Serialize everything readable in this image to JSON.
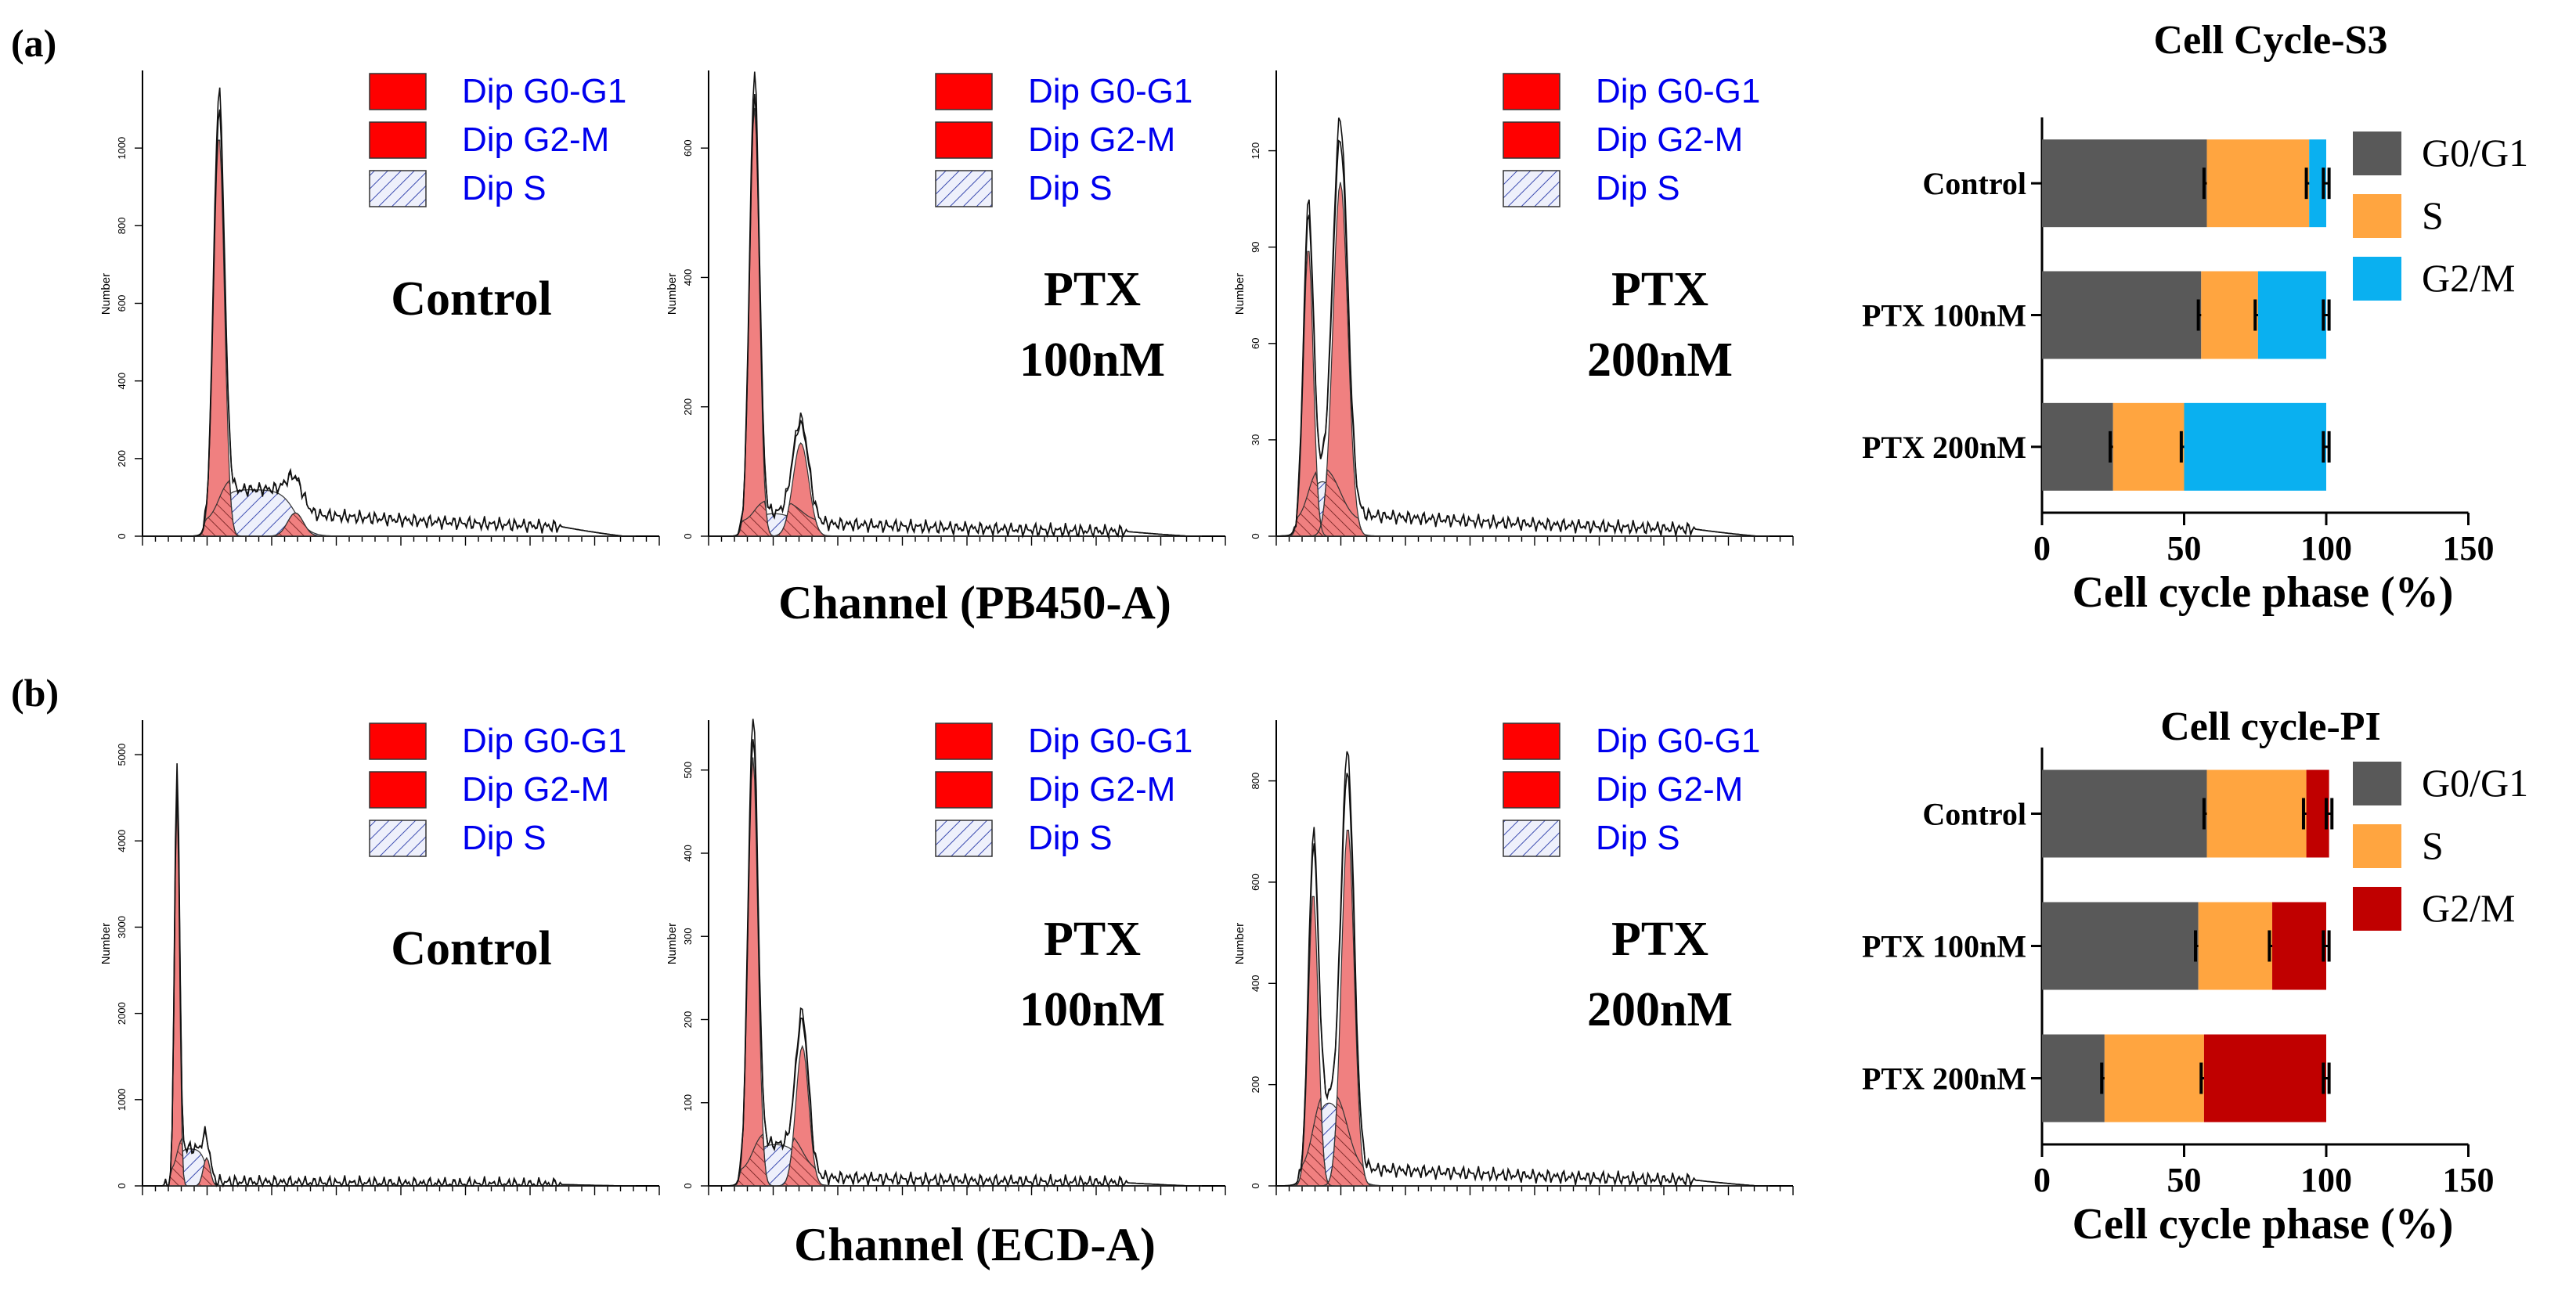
{
  "panel_labels": [
    "(a)",
    "(b)"
  ],
  "fcs_legend": {
    "items": [
      {
        "label": "Dip G0-G1",
        "style": "solid"
      },
      {
        "label": "Dip G2-M",
        "style": "solid"
      },
      {
        "label": "Dip S",
        "style": "hatch"
      }
    ],
    "text_color": "#0000ee",
    "fill_color": "#ff0000",
    "hatch_color": "#3333aa"
  },
  "chart_data": [
    {
      "type": "histogram",
      "row": 0,
      "col": 0,
      "title_lines": [
        "Control"
      ],
      "ylabel": "Number",
      "yticks": [
        0,
        200,
        400,
        600,
        800,
        1000
      ],
      "ymax": 1200,
      "model": {
        "g1_mean": 0.155,
        "g1_sd": 0.011,
        "g1_amp": 0.86,
        "g2_mean": 0.31,
        "g2_sd": 0.016,
        "g2_amp": 0.05,
        "s_level": 0.1,
        "tail": 0.05
      },
      "shared_xlabel": "Channel (PB450-A)"
    },
    {
      "type": "histogram",
      "row": 0,
      "col": 1,
      "title_lines": [
        "PTX",
        "100nM"
      ],
      "ylabel": "Number",
      "yticks": [
        0,
        200,
        400,
        600
      ],
      "ymax": 720,
      "model": {
        "g1_mean": 0.093,
        "g1_sd": 0.01,
        "g1_amp": 0.92,
        "g2_mean": 0.187,
        "g2_sd": 0.016,
        "g2_amp": 0.2,
        "s_level": 0.05,
        "tail": 0.03
      }
    },
    {
      "type": "histogram",
      "row": 0,
      "col": 2,
      "title_lines": [
        "PTX",
        "200nM"
      ],
      "ylabel": "Number",
      "yticks": [
        0,
        30,
        60,
        90,
        120
      ],
      "ymax": 145,
      "model": {
        "g1_mean": 0.065,
        "g1_sd": 0.01,
        "g1_amp": 0.62,
        "g2_mean": 0.13,
        "g2_sd": 0.015,
        "g2_amp": 0.76,
        "s_level": 0.13,
        "tail": 0.05
      }
    },
    {
      "type": "histogram",
      "row": 1,
      "col": 0,
      "title_lines": [
        "Control"
      ],
      "ylabel": "Number",
      "yticks": [
        0,
        1000,
        2000,
        3000,
        4000,
        5000
      ],
      "ymax": 5400,
      "model": {
        "g1_mean": 0.07,
        "g1_sd": 0.005,
        "g1_amp": 0.84,
        "g2_mean": 0.13,
        "g2_sd": 0.007,
        "g2_amp": 0.06,
        "s_level": 0.08,
        "tail": 0.01
      }
    },
    {
      "type": "histogram",
      "row": 1,
      "col": 1,
      "title_lines": [
        "PTX",
        "100nM"
      ],
      "ylabel": "Number",
      "yticks": [
        0,
        100,
        200,
        300,
        400,
        500
      ],
      "ymax": 560,
      "model": {
        "g1_mean": 0.09,
        "g1_sd": 0.01,
        "g1_amp": 0.92,
        "g2_mean": 0.19,
        "g2_sd": 0.013,
        "g2_amp": 0.3,
        "s_level": 0.09,
        "tail": 0.02
      }
    },
    {
      "type": "histogram",
      "row": 1,
      "col": 2,
      "title_lines": [
        "PTX",
        "200nM"
      ],
      "ylabel": "Number",
      "yticks": [
        0,
        200,
        400,
        600,
        800
      ],
      "ymax": 920,
      "model": {
        "g1_mean": 0.075,
        "g1_sd": 0.01,
        "g1_amp": 0.63,
        "g2_mean": 0.145,
        "g2_sd": 0.013,
        "g2_amp": 0.77,
        "s_level": 0.19,
        "tail": 0.04
      }
    },
    {
      "type": "bar",
      "orientation": "horizontal-stacked",
      "row": 0,
      "title": "Cell Cycle-S3",
      "categories": [
        "Control",
        "PTX 100nM",
        "PTX 200nM"
      ],
      "series": [
        {
          "name": "G0/G1",
          "values": [
            58,
            56,
            25
          ],
          "errors": [
            1,
            1,
            1
          ],
          "color": "#595959"
        },
        {
          "name": "S",
          "values": [
            36,
            20,
            25
          ],
          "errors": [
            1,
            1,
            1
          ],
          "color": "#ffa540"
        },
        {
          "name": "G2/M",
          "values": [
            6,
            24,
            50
          ],
          "errors": [
            1,
            1,
            1
          ],
          "color": "#0ab0f0"
        }
      ],
      "xlabel": "Cell cycle phase (%)",
      "xlim": [
        0,
        150
      ],
      "xticks": [
        0,
        50,
        100,
        150
      ]
    },
    {
      "type": "bar",
      "orientation": "horizontal-stacked",
      "row": 1,
      "title": "Cell cycle-PI",
      "categories": [
        "Control",
        "PTX 100nM",
        "PTX 200nM"
      ],
      "series": [
        {
          "name": "G0/G1",
          "values": [
            58,
            55,
            22
          ],
          "errors": [
            1,
            1,
            1
          ],
          "color": "#595959"
        },
        {
          "name": "S",
          "values": [
            35,
            26,
            35
          ],
          "errors": [
            1,
            1,
            1
          ],
          "color": "#ffa540"
        },
        {
          "name": "G2/M",
          "values": [
            8,
            19,
            43
          ],
          "errors": [
            1,
            1,
            1
          ],
          "color": "#c00000"
        }
      ],
      "xlabel": "Cell cycle phase (%)",
      "xlim": [
        0,
        150
      ],
      "xticks": [
        0,
        50,
        100,
        150
      ]
    },
    {
      "type": "histogram-group-label",
      "labels": [
        "Channel (PB450-A)",
        "Channel (ECD-A)"
      ]
    }
  ]
}
